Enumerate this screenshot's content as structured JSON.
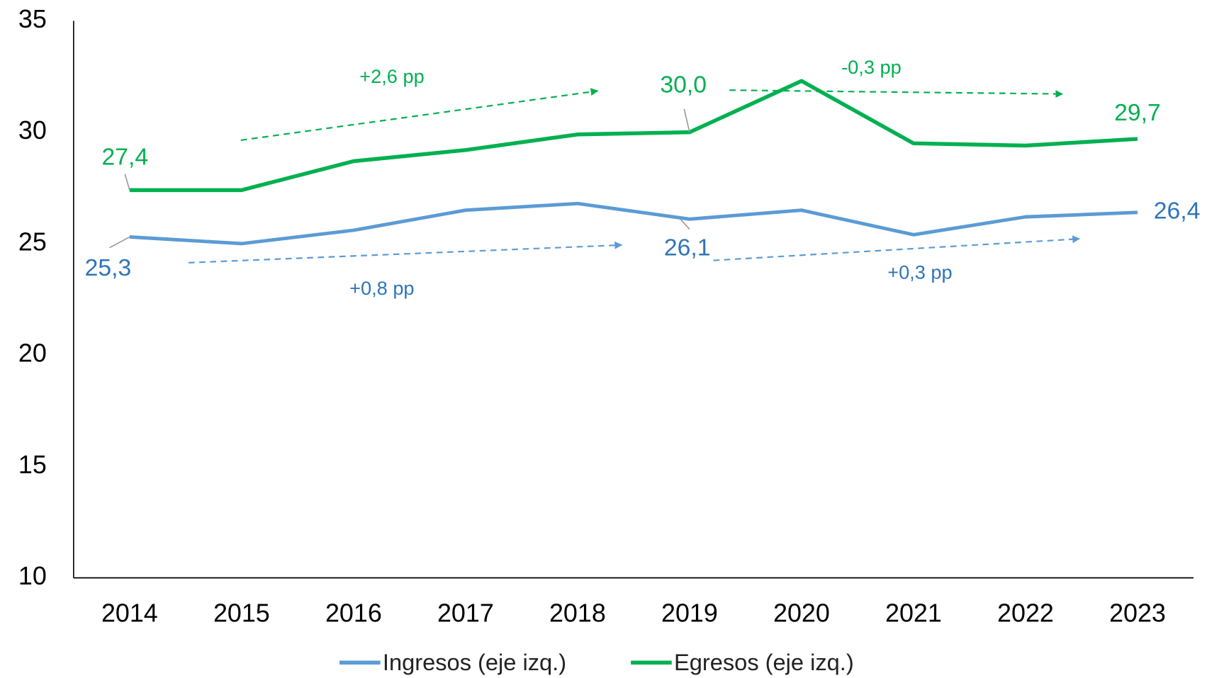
{
  "chart_data": {
    "type": "line",
    "categories": [
      "2014",
      "2015",
      "2016",
      "2017",
      "2018",
      "2019",
      "2020",
      "2021",
      "2022",
      "2023"
    ],
    "series": [
      {
        "name": "Ingresos (eje izq.)",
        "color": "#5b9bd5",
        "values": [
          25.3,
          25.0,
          25.6,
          26.5,
          26.8,
          26.1,
          26.5,
          25.4,
          26.2,
          26.4
        ],
        "value_labels": [
          "25,3",
          null,
          null,
          null,
          null,
          "26,1",
          null,
          null,
          null,
          "26,4"
        ]
      },
      {
        "name": "Egresos (eje izq.)",
        "color": "#00b050",
        "values": [
          27.4,
          27.4,
          28.7,
          29.2,
          29.9,
          30.0,
          32.3,
          29.5,
          29.4,
          29.7
        ],
        "value_labels": [
          "27,4",
          null,
          null,
          null,
          null,
          "30,0",
          null,
          null,
          null,
          "29,7"
        ]
      }
    ],
    "annotations": [
      {
        "text": "+2,6 pp",
        "color": "#00b050"
      },
      {
        "text": "-0,3 pp",
        "color": "#00b050"
      },
      {
        "text": "+0,8 pp",
        "color": "#2e75b6"
      },
      {
        "text": "+0,3 pp",
        "color": "#2e75b6"
      }
    ],
    "ylim": [
      10,
      35
    ],
    "yticks": [
      10,
      15,
      20,
      25,
      30,
      35
    ],
    "grid": false,
    "legend": "bottom"
  }
}
